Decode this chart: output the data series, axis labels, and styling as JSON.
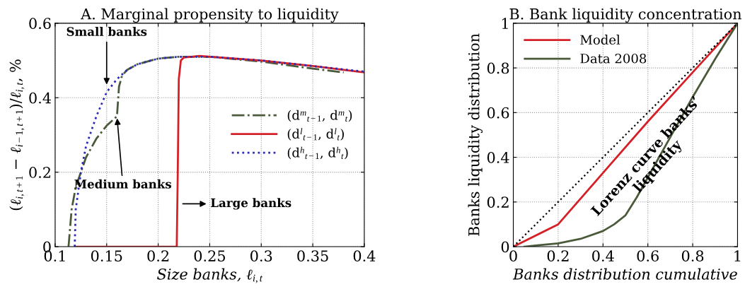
{
  "chart_data": [
    {
      "type": "line",
      "title": "A. Marginal propensity to liquidity",
      "xlabel": "Size banks, ℓ$_{i,t}$",
      "ylabel": "(ℓ$_{i,t+1}$ − ℓ$_{i−1,t+1}$)/ℓ$_{i,t}$, %",
      "xlim": [
        0.1,
        0.4
      ],
      "xticks": [
        0.1,
        0.15,
        0.2,
        0.25,
        0.3,
        0.35,
        0.4
      ],
      "ylim": [
        0,
        0.6
      ],
      "yticks": [
        0,
        0.2,
        0.4,
        0.6
      ],
      "grid": true,
      "legend": "right",
      "series": [
        {
          "name": "(d$^{m}$$_{t−1}$, d$^{m}$$_{t}$)",
          "color": "#4a5a3a",
          "line_style": "dashdot",
          "x": [
            0.113,
            0.116,
            0.12,
            0.125,
            0.13,
            0.14,
            0.15,
            0.16,
            0.162,
            0.165,
            0.17,
            0.18,
            0.2,
            0.22,
            0.25,
            0.3,
            0.35,
            0.38
          ],
          "values": [
            0,
            0.1,
            0.16,
            0.2,
            0.24,
            0.29,
            0.325,
            0.35,
            0.43,
            0.46,
            0.475,
            0.49,
            0.505,
            0.51,
            0.51,
            0.497,
            0.478,
            0.468
          ]
        },
        {
          "name": "(d$^{l}$$_{t−1}$, d$^{l}$$_{t}$)",
          "color": "#d62027",
          "line_style": "solid",
          "x": [
            0.119,
            0.218,
            0.219,
            0.22,
            0.222,
            0.225,
            0.24,
            0.3,
            0.35,
            0.4
          ],
          "values": [
            0,
            0,
            0.2,
            0.45,
            0.5,
            0.508,
            0.512,
            0.5,
            0.485,
            0.468
          ]
        },
        {
          "name": "(d$^{h}$$_{t−1}$, d$^{h}$$_{t}$)",
          "color": "#2b2bb5",
          "line_style": "dotted",
          "x": [
            0.119,
            0.12,
            0.125,
            0.13,
            0.14,
            0.15,
            0.16,
            0.17,
            0.18,
            0.2,
            0.22,
            0.25,
            0.3,
            0.35,
            0.4
          ],
          "values": [
            0,
            0.1,
            0.2,
            0.27,
            0.35,
            0.415,
            0.45,
            0.475,
            0.49,
            0.505,
            0.51,
            0.51,
            0.5,
            0.485,
            0.47
          ]
        }
      ],
      "annotations": [
        {
          "text": "Small banks",
          "x": 0.15,
          "y": 0.43
        },
        {
          "text": "Medium banks",
          "x": 0.16,
          "y": 0.35
        },
        {
          "text": "Large banks",
          "x": 0.222,
          "y": 0.115
        }
      ]
    },
    {
      "type": "line",
      "title": "B. Bank liquidity concentration",
      "xlabel": "Banks distribution cumulative",
      "ylabel": "Banks liquidity distribution",
      "xlim": [
        0,
        1
      ],
      "xticks": [
        0,
        0.2,
        0.4,
        0.6,
        0.8,
        1
      ],
      "ylim": [
        0,
        1
      ],
      "yticks": [
        0,
        0.2,
        0.4,
        0.6,
        0.8,
        1
      ],
      "grid": true,
      "legend": "top left",
      "series": [
        {
          "name": "Model",
          "color": "#d62027",
          "line_style": "solid",
          "x": [
            0,
            0.2,
            0.4,
            0.6,
            0.8,
            1
          ],
          "values": [
            0,
            0.1,
            0.33,
            0.56,
            0.78,
            1
          ]
        },
        {
          "name": "Data 2008",
          "color": "#4a5a3a",
          "line_style": "solid",
          "x": [
            0.05,
            0.2,
            0.3,
            0.4,
            0.45,
            0.5,
            0.55,
            0.6,
            0.7,
            0.8,
            0.9,
            1
          ],
          "values": [
            0,
            0.015,
            0.035,
            0.07,
            0.1,
            0.14,
            0.22,
            0.31,
            0.49,
            0.67,
            0.84,
            1
          ]
        },
        {
          "color": "#000000",
          "line_style": "dotted",
          "x": [
            0,
            1
          ],
          "values": [
            0,
            1
          ]
        }
      ],
      "annotations": [
        "Lorenz curve banks’\nliquidity"
      ]
    }
  ]
}
